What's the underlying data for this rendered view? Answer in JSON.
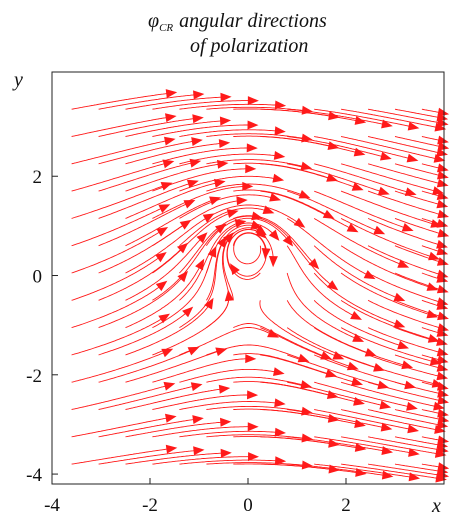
{
  "chart_data": {
    "type": "stream",
    "title": {
      "symbol": "φ",
      "subscript": "CR",
      "line1_rest": "angular directions",
      "line2": "of polarization"
    },
    "xlabel": "x",
    "ylabel": "y",
    "xlim": [
      -4,
      4
    ],
    "ylim": [
      -4.2,
      4.1
    ],
    "x_ticks": [
      -4,
      -2,
      0,
      2
    ],
    "x_tick_labels": [
      "-4",
      "-2",
      "0",
      "2"
    ],
    "y_ticks": [
      -4,
      -2,
      0,
      2
    ],
    "y_tick_labels": [
      "-4",
      "-2",
      "0",
      "2"
    ],
    "grid": false,
    "field": "angle-direction field of polarization with singular points near (0, 0.6) and (0, -0.6)",
    "singular_points": [
      [
        0,
        0.6
      ],
      [
        0,
        -0.6
      ]
    ],
    "colors": {
      "stream": "#ff1a1a",
      "axes": "#222222"
    }
  }
}
